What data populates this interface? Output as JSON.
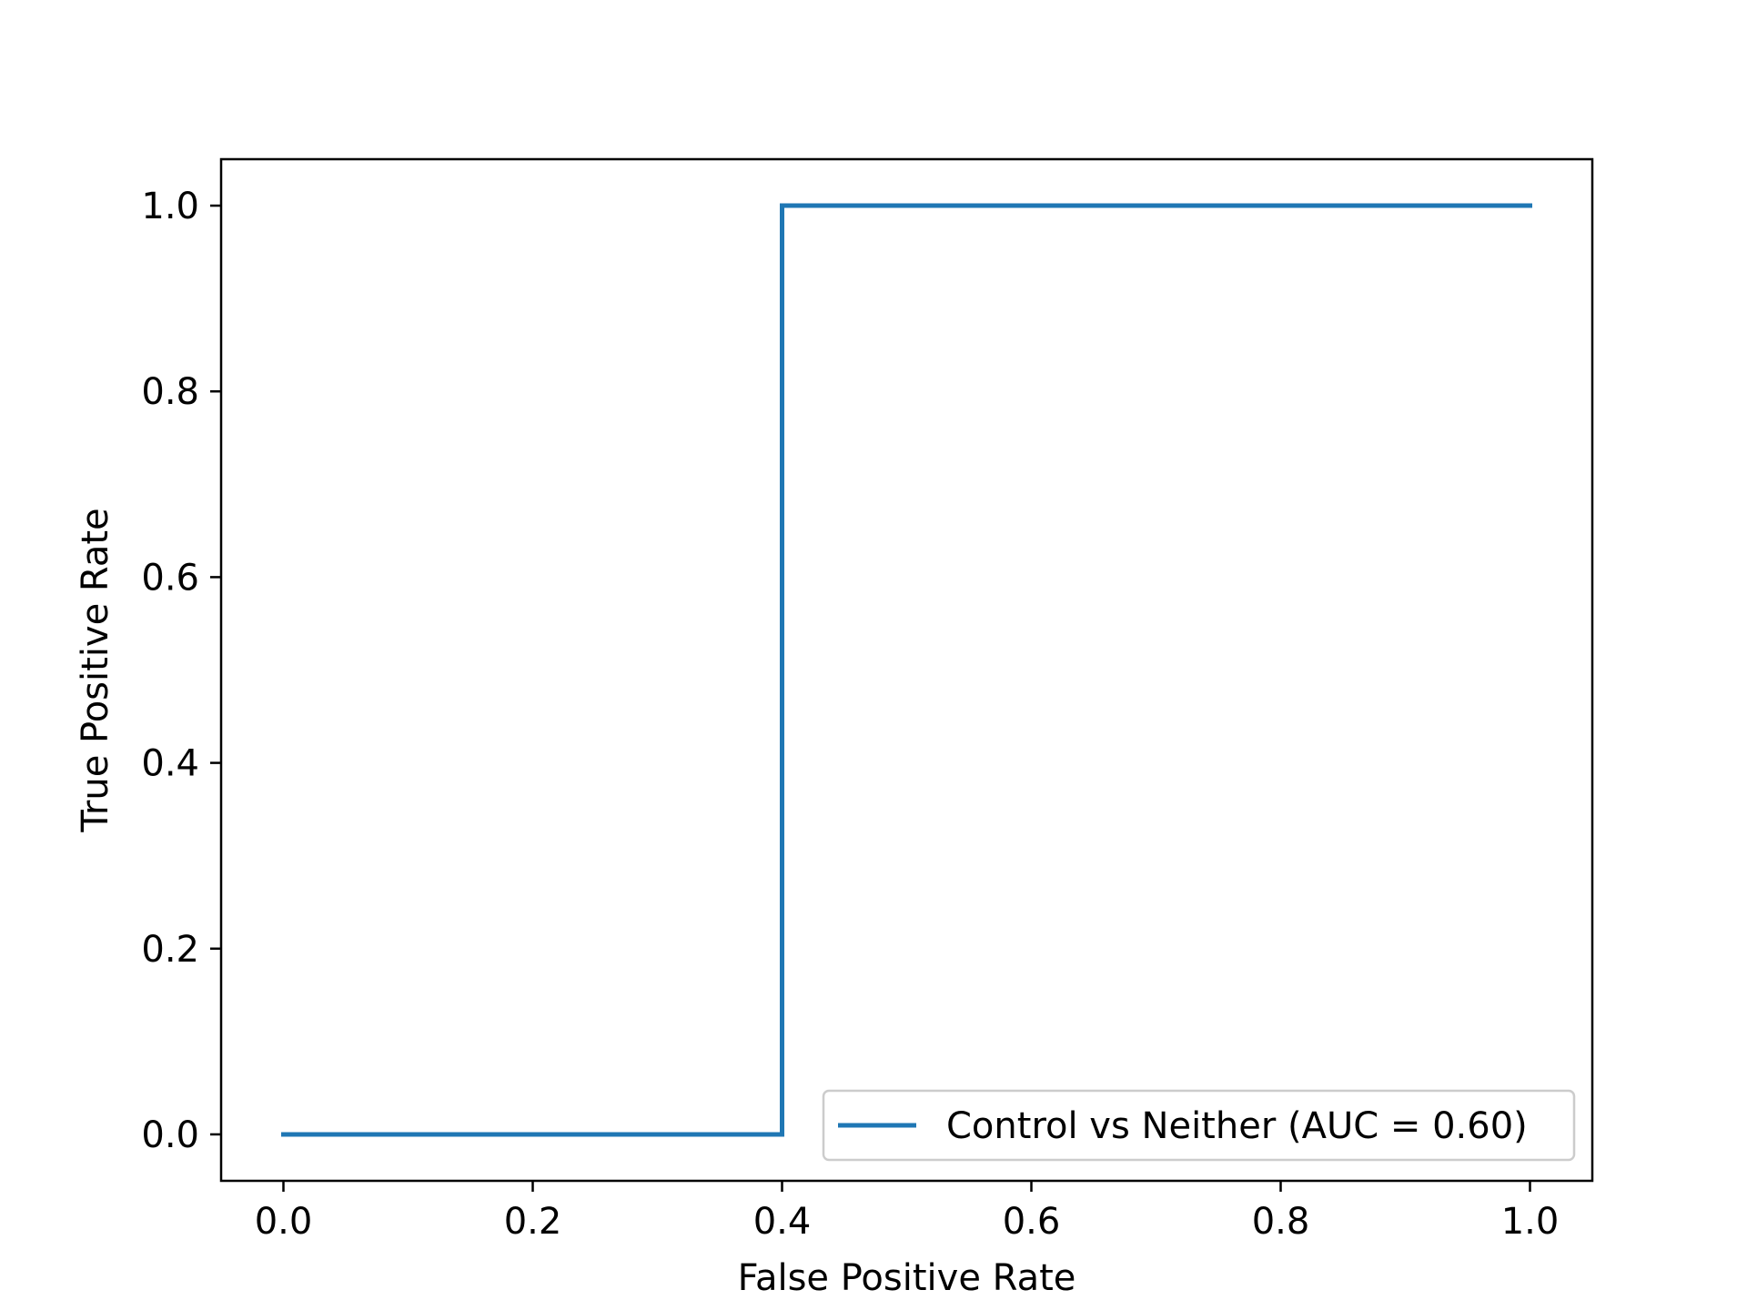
{
  "chart_data": {
    "type": "line",
    "title": "",
    "xlabel": "False Positive Rate",
    "ylabel": "True Positive Rate",
    "xlim": [
      -0.05,
      1.05
    ],
    "ylim": [
      -0.05,
      1.05
    ],
    "x_ticks": [
      0.0,
      0.2,
      0.4,
      0.6,
      0.8,
      1.0
    ],
    "y_ticks": [
      0.0,
      0.2,
      0.4,
      0.6,
      0.8,
      1.0
    ],
    "x_tick_labels": [
      "0.0",
      "0.2",
      "0.4",
      "0.6",
      "0.8",
      "1.0"
    ],
    "y_tick_labels": [
      "0.0",
      "0.2",
      "0.4",
      "0.6",
      "0.8",
      "1.0"
    ],
    "grid": false,
    "legend_position": "lower-right",
    "series": [
      {
        "name": "Control vs Neither (AUC = 0.60)",
        "color": "#1f77b4",
        "x": [
          0.0,
          0.4,
          0.4,
          1.0
        ],
        "y": [
          0.0,
          0.0,
          1.0,
          1.0
        ]
      }
    ]
  }
}
